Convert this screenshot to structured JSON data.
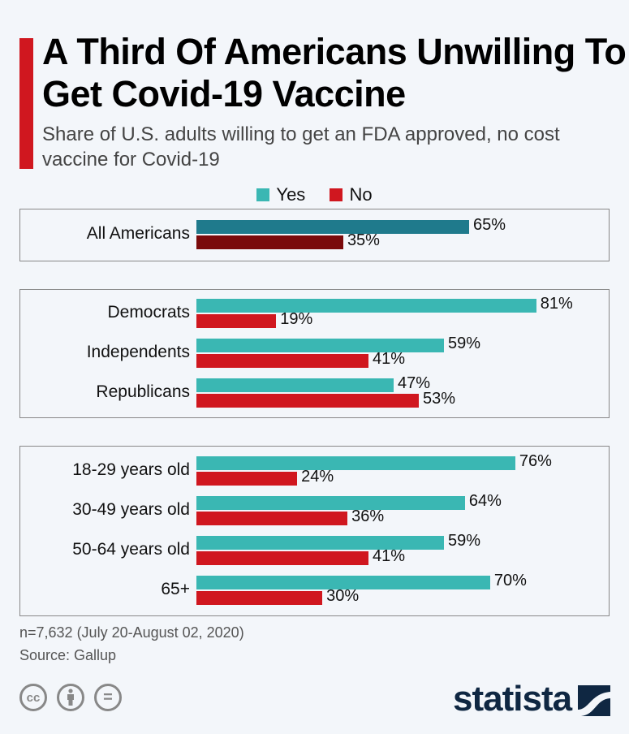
{
  "header": {
    "title": "A Third Of Americans Unwilling To Get Covid-19 Vaccine",
    "subtitle": "Share of U.S. adults willing to get an FDA approved, no cost vaccine for Covid-19"
  },
  "colors": {
    "accent_red_bar": "#d0171f",
    "yes": "#3ab7b3",
    "no": "#d0171f",
    "yes_highlight": "#1f7a8c",
    "no_highlight": "#7a0a0b",
    "brand": "#0f2742"
  },
  "chart_data": {
    "type": "bar",
    "orientation": "horizontal",
    "title": "A Third Of Americans Unwilling To Get Covid-19 Vaccine",
    "subtitle": "Share of U.S. adults willing to get an FDA approved, no cost vaccine for Covid-19",
    "xlabel": "",
    "ylabel": "",
    "xlim": [
      0,
      100
    ],
    "unit": "%",
    "legend": {
      "position": "top-center",
      "entries": [
        "Yes",
        "No"
      ]
    },
    "groups": [
      {
        "name": "overall",
        "categories": [
          "All Americans"
        ],
        "series": [
          {
            "name": "Yes",
            "values": [
              65
            ]
          },
          {
            "name": "No",
            "values": [
              35
            ]
          }
        ]
      },
      {
        "name": "party",
        "categories": [
          "Democrats",
          "Independents",
          "Republicans"
        ],
        "series": [
          {
            "name": "Yes",
            "values": [
              81,
              59,
              47
            ]
          },
          {
            "name": "No",
            "values": [
              19,
              41,
              53
            ]
          }
        ]
      },
      {
        "name": "age",
        "categories": [
          "18-29 years old",
          "30-49 years old",
          "50-64 years old",
          "65+"
        ],
        "series": [
          {
            "name": "Yes",
            "values": [
              76,
              64,
              59,
              70
            ]
          },
          {
            "name": "No",
            "values": [
              24,
              36,
              41,
              30
            ]
          }
        ]
      }
    ]
  },
  "footer": {
    "note": "n=7,632 (July 20-August 02, 2020)",
    "source": "Source: Gallup",
    "license_icons": [
      "cc-icon",
      "attribution-icon",
      "no-derivatives-icon"
    ],
    "cc_label": "cc",
    "nd_label": "=",
    "brand": "statista"
  }
}
